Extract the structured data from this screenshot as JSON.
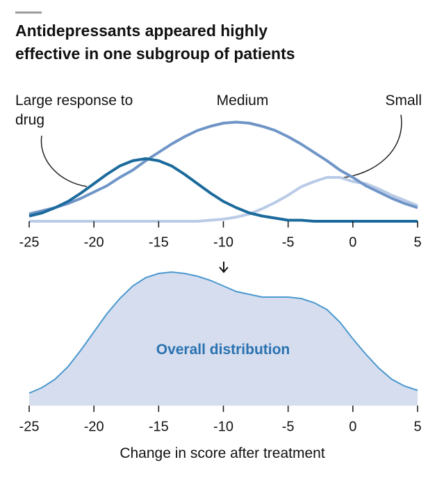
{
  "chart_data": [
    {
      "type": "line",
      "title": "Antidepressants appeared highly effective in one subgroup of patients",
      "x": [
        -25,
        -24,
        -23,
        -22,
        -21,
        -20,
        -19,
        -18,
        -17,
        -16,
        -15,
        -14,
        -13,
        -12,
        -11,
        -10,
        -9,
        -8,
        -7,
        -6,
        -5,
        -4,
        -3,
        -2,
        -1,
        0,
        1,
        2,
        3,
        4,
        5
      ],
      "series": [
        {
          "name": "Large response to drug",
          "color": "#1b6a9c",
          "values": [
            0.05,
            0.08,
            0.13,
            0.19,
            0.27,
            0.36,
            0.45,
            0.53,
            0.58,
            0.6,
            0.58,
            0.53,
            0.45,
            0.36,
            0.27,
            0.19,
            0.13,
            0.08,
            0.05,
            0.03,
            0.01,
            0.01,
            0,
            0,
            0,
            0,
            0,
            0,
            0,
            0,
            0
          ]
        },
        {
          "name": "Medium",
          "color": "#6f95c7",
          "values": [
            0.07,
            0.1,
            0.13,
            0.17,
            0.22,
            0.28,
            0.34,
            0.42,
            0.49,
            0.58,
            0.66,
            0.74,
            0.81,
            0.87,
            0.91,
            0.94,
            0.95,
            0.94,
            0.91,
            0.87,
            0.81,
            0.74,
            0.66,
            0.58,
            0.49,
            0.42,
            0.34,
            0.28,
            0.22,
            0.17,
            0.13
          ]
        },
        {
          "name": "Small",
          "color": "#b9cbe6",
          "values": [
            0,
            0,
            0,
            0,
            0,
            0,
            0,
            0,
            0,
            0,
            0,
            0,
            0,
            0,
            0.01,
            0.02,
            0.04,
            0.07,
            0.12,
            0.18,
            0.25,
            0.33,
            0.38,
            0.42,
            0.42,
            0.38,
            0.36,
            0.31,
            0.25,
            0.2,
            0.15
          ]
        }
      ],
      "xlim": [
        -25,
        5
      ],
      "xticks": [
        -25,
        -20,
        -15,
        -10,
        -5,
        0,
        5
      ],
      "ylim": [
        0,
        1
      ]
    },
    {
      "type": "area",
      "label": "Overall distribution",
      "x_label": "Change in score after treatment",
      "color": "#4a98cf",
      "fill": "#d5ddee",
      "x": [
        -25,
        -24,
        -23,
        -22,
        -21,
        -20,
        -19,
        -18,
        -17,
        -16,
        -15,
        -14,
        -13,
        -12,
        -11,
        -10,
        -9,
        -8,
        -7,
        -6,
        -5,
        -4,
        -3,
        -2,
        -1,
        0,
        1,
        2,
        3,
        4,
        5
      ],
      "values": [
        0.09,
        0.13,
        0.19,
        0.28,
        0.4,
        0.53,
        0.66,
        0.77,
        0.86,
        0.92,
        0.95,
        0.96,
        0.95,
        0.93,
        0.9,
        0.86,
        0.82,
        0.8,
        0.78,
        0.78,
        0.78,
        0.77,
        0.74,
        0.69,
        0.6,
        0.48,
        0.37,
        0.27,
        0.19,
        0.14,
        0.11
      ],
      "xlim": [
        -25,
        5
      ],
      "xticks": [
        -25,
        -20,
        -15,
        -10,
        -5,
        0,
        5
      ],
      "ylim": [
        0,
        1
      ]
    }
  ]
}
